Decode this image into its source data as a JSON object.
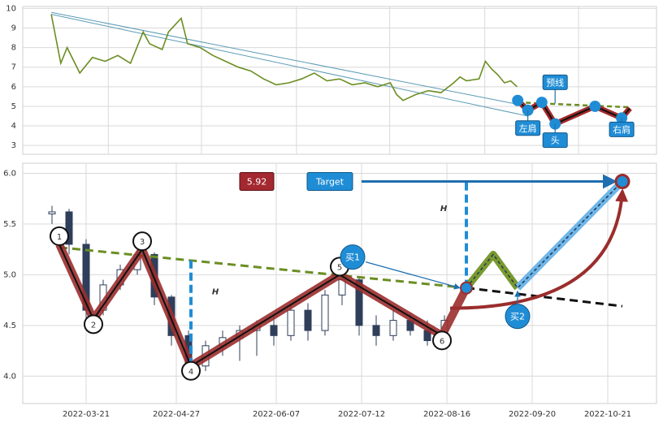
{
  "chart_data": [
    {
      "type": "line",
      "xlim": [
        0,
        100
      ],
      "ylim": [
        2.55,
        10.1
      ],
      "yticks": [
        3,
        4,
        5,
        6,
        7,
        8,
        9,
        10
      ],
      "xticks": [
        13.5,
        28.2,
        43.2,
        57.9,
        72.9,
        87.7
      ],
      "grid": true,
      "series": [
        {
          "color": "#6b8e23",
          "x": [
            4.5,
            6,
            7,
            9,
            11,
            13,
            15,
            17,
            19,
            20,
            22,
            23,
            25,
            26,
            28,
            30,
            32,
            34,
            36,
            38,
            40,
            42,
            44,
            46,
            48,
            50,
            52,
            54,
            56,
            58,
            59,
            60,
            62,
            64,
            66,
            68,
            69,
            70,
            72,
            73,
            74,
            75,
            76,
            77,
            78
          ],
          "values": [
            9.7,
            7.2,
            8.0,
            6.7,
            7.5,
            7.3,
            7.6,
            7.2,
            8.8,
            8.2,
            7.9,
            8.8,
            9.5,
            8.2,
            8.0,
            7.6,
            7.3,
            7.0,
            6.8,
            6.4,
            6.1,
            6.2,
            6.4,
            6.7,
            6.3,
            6.4,
            6.1,
            6.2,
            6.0,
            6.2,
            5.6,
            5.3,
            5.6,
            5.8,
            5.7,
            6.2,
            6.5,
            6.3,
            6.4,
            7.3,
            6.9,
            6.6,
            6.2,
            6.3,
            6.0
          ]
        }
      ],
      "trend_lines": [
        {
          "color": "#5b9bb5",
          "x": [
            4.5,
            78.1
          ],
          "values": [
            9.8,
            5.1
          ]
        },
        {
          "color": "#5b9bb5",
          "x": [
            4.5,
            79.7
          ],
          "values": [
            9.7,
            4.5
          ]
        }
      ],
      "pattern": {
        "color": "#a52a2a",
        "x": [
          78.1,
          79.7,
          81.9,
          84.0,
          90.3,
          94.5,
          95.8
        ],
        "values": [
          5.3,
          4.8,
          5.2,
          4.1,
          5.0,
          4.4,
          4.9
        ]
      },
      "neckline": {
        "color": "#6b8e23",
        "x": [
          78.1,
          95.8
        ],
        "values": [
          5.2,
          4.95
        ]
      },
      "annotations": [
        {
          "text": "左肩",
          "x": 79.7,
          "value": 4.8
        },
        {
          "text": "头",
          "x": 84.0,
          "value": 4.1
        },
        {
          "text": "右肩",
          "x": 94.5,
          "value": 4.4
        },
        {
          "text": "预线",
          "x": 84.0,
          "value": 5.15
        }
      ]
    },
    {
      "type": "candlestick",
      "xlim": [
        "2022-02-23",
        "2022-11-10"
      ],
      "ylim": [
        3.73,
        6.1
      ],
      "yticks": [
        {
          "value": 4,
          "label": "4.0"
        },
        4.5,
        {
          "value": 5,
          "label": "5.0"
        },
        5.5,
        {
          "value": 6,
          "label": "6.0"
        }
      ],
      "xticks": [
        "2022-03-21",
        "2022-04-27",
        "2022-06-07",
        "2022-07-12",
        "2022-08-16",
        "2022-09-20",
        "2022-10-21"
      ],
      "grid": true,
      "color": "#2f3e5a",
      "x": [
        "2022-03-07",
        "2022-03-14",
        "2022-03-21",
        "2022-03-28",
        "2022-04-04",
        "2022-04-11",
        "2022-04-18",
        "2022-04-25",
        "2022-05-02",
        "2022-05-09",
        "2022-05-16",
        "2022-05-23",
        "2022-05-30",
        "2022-06-06",
        "2022-06-13",
        "2022-06-20",
        "2022-06-27",
        "2022-07-04",
        "2022-07-11",
        "2022-07-18",
        "2022-07-25",
        "2022-08-01",
        "2022-08-08",
        "2022-08-15"
      ],
      "open": [
        5.6,
        5.62,
        5.3,
        4.65,
        4.9,
        5.05,
        5.2,
        4.78,
        4.4,
        4.1,
        4.3,
        4.38,
        4.45,
        4.5,
        4.4,
        4.65,
        4.45,
        4.8,
        4.95,
        4.5,
        4.4,
        4.55,
        4.45,
        4.35
      ],
      "high": [
        5.68,
        5.65,
        5.35,
        4.95,
        5.1,
        5.3,
        5.22,
        4.8,
        4.45,
        4.35,
        4.45,
        4.5,
        4.55,
        4.6,
        4.7,
        4.72,
        4.85,
        5.1,
        4.98,
        4.6,
        4.65,
        4.62,
        4.55,
        4.6
      ],
      "low": [
        5.5,
        5.2,
        4.55,
        4.6,
        4.85,
        5.0,
        4.7,
        4.3,
        3.98,
        4.05,
        4.2,
        4.15,
        4.2,
        4.3,
        4.35,
        4.35,
        4.4,
        4.7,
        4.4,
        4.3,
        4.35,
        4.4,
        4.3,
        4.3
      ],
      "close": [
        5.62,
        5.3,
        4.65,
        4.9,
        5.05,
        5.2,
        4.78,
        4.4,
        4.1,
        4.3,
        4.38,
        4.45,
        4.5,
        4.4,
        4.65,
        4.45,
        4.8,
        4.95,
        4.5,
        4.4,
        4.55,
        4.45,
        4.35,
        4.55
      ],
      "pattern": {
        "color": "#9b2d2d",
        "labels": [
          "1",
          "2",
          "3",
          "4",
          "5",
          "6"
        ],
        "x": [
          "2022-03-10",
          "2022-03-24",
          "2022-04-13",
          "2022-05-03",
          "2022-07-03",
          "2022-08-14"
        ],
        "values": [
          5.3,
          4.56,
          5.25,
          4.1,
          5.0,
          4.4
        ]
      },
      "breakout": {
        "x": "2022-08-24",
        "value": 4.87
      },
      "neckline": {
        "color": "#6b8e23",
        "x": [
          "2022-03-10",
          "2022-08-24"
        ],
        "values": [
          5.27,
          4.87
        ]
      },
      "extension": {
        "x": [
          "2022-08-24",
          "2022-10-27"
        ],
        "values": [
          4.87,
          4.69
        ]
      },
      "projection": {
        "x": [
          "2022-08-24",
          "2022-09-04",
          "2022-09-14",
          "2022-10-27"
        ],
        "values": [
          4.87,
          5.2,
          4.87,
          5.92
        ]
      },
      "height_marks": [
        {
          "label": "H",
          "x": "2022-05-03",
          "values": [
            4.1,
            5.15
          ]
        },
        {
          "label": "H",
          "x": "2022-08-24",
          "values": [
            4.87,
            5.93
          ]
        }
      ],
      "target": {
        "label": "Target",
        "value": 5.92,
        "x": "2022-10-27"
      },
      "buy_points": [
        {
          "label": "买1",
          "x": "2022-08-24",
          "value": 4.87
        },
        {
          "label": "买2",
          "x": "2022-09-14",
          "value": 4.87
        }
      ]
    }
  ]
}
